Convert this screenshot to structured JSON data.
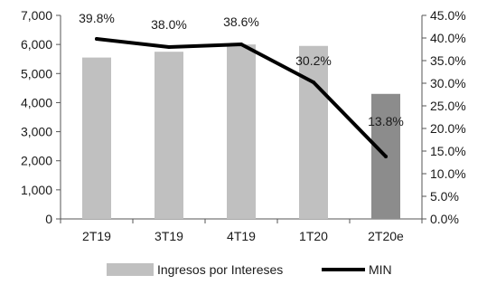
{
  "chart_data": {
    "type": "bar+line",
    "categories": [
      "2T19",
      "3T19",
      "4T19",
      "1T20",
      "2T20e"
    ],
    "series": [
      {
        "name": "Ingresos por Intereses",
        "type": "bar",
        "axis": "left",
        "values": [
          5550,
          5750,
          6000,
          5950,
          4300
        ],
        "colors": [
          "#c0c0c0",
          "#c0c0c0",
          "#c0c0c0",
          "#c0c0c0",
          "#8c8c8c"
        ]
      },
      {
        "name": "MIN",
        "type": "line",
        "axis": "right",
        "values": [
          39.8,
          38.0,
          38.6,
          30.2,
          13.8
        ],
        "labels": [
          "39.8%",
          "38.0%",
          "38.6%",
          "30.2%",
          "13.8%"
        ],
        "color": "#000000"
      }
    ],
    "y_left": {
      "lim": [
        0,
        7000
      ],
      "ticks": [
        "0",
        "1,000",
        "2,000",
        "3,000",
        "4,000",
        "5,000",
        "6,000",
        "7,000"
      ]
    },
    "y_right": {
      "lim": [
        0,
        45
      ],
      "ticks": [
        "0.0%",
        "5.0%",
        "10.0%",
        "15.0%",
        "20.0%",
        "25.0%",
        "30.0%",
        "35.0%",
        "40.0%",
        "45.0%"
      ]
    },
    "grid": false,
    "legend_position": "bottom",
    "title": "",
    "xlabel": "",
    "ylabel": ""
  }
}
